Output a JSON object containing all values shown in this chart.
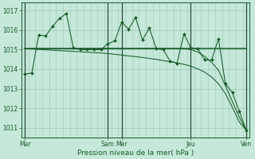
{
  "background_color": "#c5e8d8",
  "grid_color_major": "#9dc8b8",
  "grid_color_minor": "#b8ddd0",
  "line_color": "#1a5c2a",
  "vline_color": "#2a4a3a",
  "ylim": [
    1010.5,
    1017.4
  ],
  "yticks": [
    1011,
    1012,
    1013,
    1014,
    1015,
    1016,
    1017
  ],
  "xlabel": "Pression niveau de la mer( hPa )",
  "xtick_labels": [
    "Mar",
    "Sam",
    "Mer",
    "Jeu",
    "Ven"
  ],
  "xtick_positions": [
    0,
    12,
    14,
    24,
    32
  ],
  "total_points": 33,
  "vline_positions": [
    0,
    12,
    14,
    24,
    32
  ],
  "series1_x": [
    0,
    1,
    2,
    3,
    4,
    5,
    6,
    7,
    8,
    9,
    10,
    11,
    12,
    13,
    14,
    15,
    16,
    17,
    18,
    19,
    20,
    21,
    22,
    23,
    24,
    25,
    26,
    27,
    28,
    29,
    30,
    31,
    32
  ],
  "series1_y": [
    1013.75,
    1013.8,
    1015.75,
    1015.7,
    1016.2,
    1016.6,
    1016.85,
    1015.1,
    1015.0,
    1015.0,
    1015.0,
    1015.0,
    1015.3,
    1015.45,
    1016.4,
    1016.05,
    1016.65,
    1015.5,
    1016.1,
    1015.05,
    1015.0,
    1014.42,
    1014.3,
    1015.8,
    1015.1,
    1015.05,
    1014.47,
    1014.47,
    1015.55,
    1013.25,
    1012.8,
    1011.85,
    1010.88
  ],
  "series2_y": [
    1015.05,
    1015.05,
    1015.05,
    1015.05,
    1015.05,
    1015.05,
    1015.05,
    1015.05,
    1015.05,
    1015.05,
    1015.05,
    1015.05,
    1015.05,
    1015.05,
    1015.05,
    1015.05,
    1015.05,
    1015.05,
    1015.05,
    1015.05,
    1015.05,
    1015.05,
    1015.05,
    1015.05,
    1015.05,
    1015.05,
    1015.05,
    1015.05,
    1015.05,
    1015.05,
    1015.05,
    1015.05,
    1015.05
  ],
  "series3_y": [
    1015.05,
    1015.05,
    1015.05,
    1015.05,
    1015.05,
    1015.05,
    1015.05,
    1015.05,
    1015.05,
    1015.05,
    1015.05,
    1015.05,
    1015.05,
    1015.05,
    1015.05,
    1015.05,
    1015.05,
    1015.05,
    1015.05,
    1015.05,
    1015.05,
    1015.05,
    1015.05,
    1015.05,
    1015.0,
    1014.88,
    1014.65,
    1014.35,
    1013.95,
    1013.15,
    1012.35,
    1011.55,
    1010.88
  ],
  "series4_y": [
    1015.05,
    1015.03,
    1015.01,
    1014.99,
    1014.97,
    1014.95,
    1014.93,
    1014.91,
    1014.89,
    1014.87,
    1014.85,
    1014.83,
    1014.8,
    1014.76,
    1014.72,
    1014.68,
    1014.64,
    1014.6,
    1014.55,
    1014.5,
    1014.44,
    1014.38,
    1014.32,
    1014.25,
    1014.15,
    1014.02,
    1013.85,
    1013.6,
    1013.25,
    1012.75,
    1012.05,
    1011.3,
    1010.88
  ]
}
